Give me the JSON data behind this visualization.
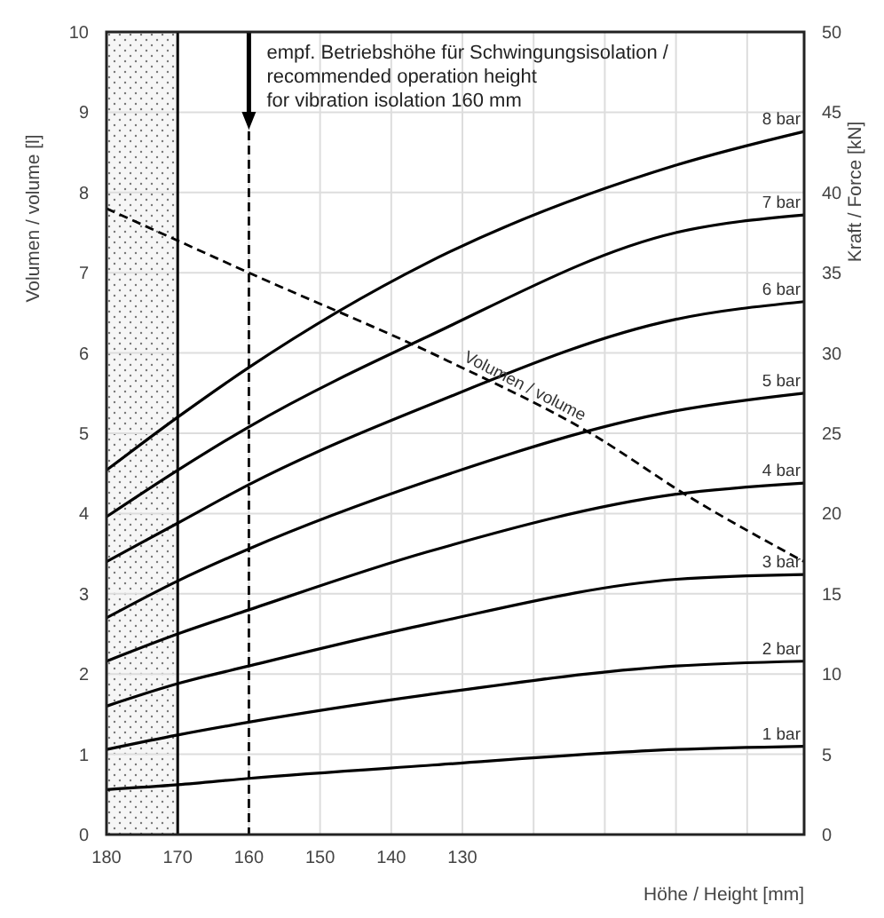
{
  "chart_data": {
    "type": "line",
    "xlabel": "Höhe / Height [mm]",
    "ylabel": "Volumen / volume [l]",
    "y2label": "Kraft / Force [kN]",
    "xlim": [
      180,
      82
    ],
    "xticks": [
      180,
      170,
      160,
      150,
      140,
      130,
      {
        "value": 120,
        "label": null
      },
      {
        "value": 110,
        "label": null
      },
      {
        "value": 100,
        "label": null
      },
      {
        "value": 90,
        "label": null
      }
    ],
    "ylim": [
      0,
      10
    ],
    "yticks": [
      0,
      1,
      2,
      3,
      4,
      5,
      6,
      7,
      8,
      9,
      10
    ],
    "y2lim": [
      0,
      50
    ],
    "y2ticks": [
      0,
      5,
      10,
      15,
      20,
      25,
      30,
      35,
      40,
      45,
      50
    ],
    "grid": true,
    "marker": "none",
    "x": [
      180,
      170,
      160,
      135,
      100,
      82
    ],
    "series": [
      {
        "name": "1 bar",
        "color": "#000000",
        "axis": "y2",
        "values": [
          2.8,
          3.1,
          3.5,
          4.3,
          5.3,
          5.5
        ]
      },
      {
        "name": "2 bar",
        "color": "#000000",
        "axis": "y2",
        "values": [
          5.3,
          6.2,
          7,
          8.7,
          10.5,
          10.8
        ]
      },
      {
        "name": "3 bar",
        "color": "#000000",
        "axis": "y2",
        "values": [
          8,
          9.4,
          10.5,
          13.1,
          15.9,
          16.2
        ]
      },
      {
        "name": "4 bar",
        "color": "#000000",
        "axis": "y2",
        "values": [
          10.8,
          12.5,
          14,
          17.6,
          21.2,
          21.9
        ]
      },
      {
        "name": "5 bar",
        "color": "#000000",
        "axis": "y2",
        "values": [
          13.5,
          15.8,
          17.8,
          22,
          26.4,
          27.5
        ]
      },
      {
        "name": "6 bar",
        "color": "#000000",
        "axis": "y2",
        "values": [
          17,
          19.4,
          21.8,
          26.7,
          32.1,
          33.2
        ]
      },
      {
        "name": "7 bar",
        "color": "#000000",
        "axis": "y2",
        "values": [
          19.8,
          22.7,
          25.4,
          31,
          37.5,
          38.6
        ]
      },
      {
        "name": "8 bar",
        "color": "#000000",
        "axis": "y2",
        "values": [
          22.7,
          26,
          29.1,
          35.6,
          41.7,
          43.8
        ]
      },
      {
        "name": "Volumen / volume",
        "color": "#000000",
        "axis": "y",
        "line_style": "dashed",
        "x": [
          180,
          170,
          160,
          132,
          112,
          98,
          82
        ],
        "values": [
          7.8,
          7.4,
          7,
          5.9,
          5,
          4.2,
          3.4
        ]
      }
    ],
    "ref_lines": [
      {
        "axis": "x",
        "value": 170,
        "line_style": "solid",
        "color": "#000000"
      },
      {
        "axis": "x",
        "value": 160,
        "line_style": "dashed",
        "color": "#000000",
        "label": "empf. Betriebshöhe für Schwingungsisolation /\nrecommended operation height\nfor vibration isolation 160 mm"
      }
    ],
    "bands": [
      {
        "axis": "x",
        "from": 180,
        "to": 170,
        "color": "#888888"
      }
    ]
  }
}
